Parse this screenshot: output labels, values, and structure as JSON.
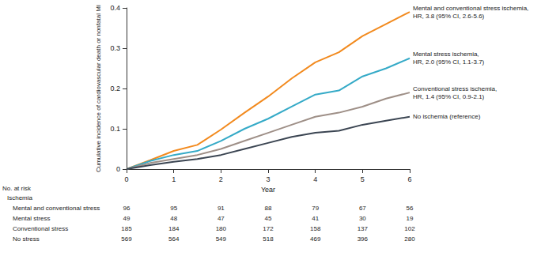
{
  "chart_data": {
    "type": "line",
    "x_label": "Year",
    "y_label": "Cumulative incidence of cardiovascular death or nonfatal MI",
    "x": [
      0,
      0.5,
      1,
      1.5,
      2,
      2.5,
      3,
      3.5,
      4,
      4.5,
      5,
      5.5,
      6
    ],
    "series": [
      {
        "name": "Mental and conventional stress ischemia,",
        "hr": "HR, 3.8 (95% CI, 2.6-5.6)",
        "color": "#f28a1e",
        "values": [
          0,
          0.022,
          0.045,
          0.06,
          0.098,
          0.14,
          0.18,
          0.225,
          0.265,
          0.29,
          0.33,
          0.36,
          0.39
        ]
      },
      {
        "name": "Mental stress ischemia,",
        "hr": "HR, 2.0 (95% CI, 1.1-3.7)",
        "color": "#35aac7",
        "values": [
          0,
          0.02,
          0.035,
          0.045,
          0.07,
          0.1,
          0.125,
          0.155,
          0.185,
          0.195,
          0.23,
          0.25,
          0.275
        ]
      },
      {
        "name": "Conventional stress ischemia,",
        "hr": "HR, 1.4 (95% CI, 0.9-2.1)",
        "color": "#9e8f87",
        "values": [
          0,
          0.015,
          0.025,
          0.035,
          0.05,
          0.07,
          0.09,
          0.11,
          0.13,
          0.14,
          0.155,
          0.175,
          0.19
        ]
      },
      {
        "name": "No ischemia (reference)",
        "color": "#3b4552",
        "values": [
          0,
          0.01,
          0.018,
          0.025,
          0.035,
          0.05,
          0.065,
          0.08,
          0.09,
          0.095,
          0.11,
          0.12,
          0.13
        ]
      }
    ],
    "xlim": [
      0,
      6
    ],
    "xticks": [
      0,
      1,
      2,
      3,
      4,
      5,
      6
    ],
    "ylim": [
      0,
      0.4
    ],
    "yticks": [
      0,
      0.1,
      0.2,
      0.3,
      0.4
    ],
    "grid": false,
    "risk_table": {
      "title": "No. at risk",
      "subtitle": "Ischemia",
      "years": [
        0,
        1,
        2,
        3,
        4,
        5,
        6
      ],
      "rows": [
        {
          "label": "Mental and conventional stress",
          "values": [
            96,
            95,
            91,
            88,
            79,
            67,
            56
          ]
        },
        {
          "label": "Mental stress",
          "values": [
            49,
            48,
            47,
            45,
            41,
            30,
            19
          ]
        },
        {
          "label": "Conventional stress",
          "values": [
            185,
            184,
            180,
            172,
            158,
            137,
            102
          ]
        },
        {
          "label": "No stress",
          "values": [
            569,
            564,
            549,
            518,
            469,
            396,
            280
          ]
        }
      ]
    }
  }
}
